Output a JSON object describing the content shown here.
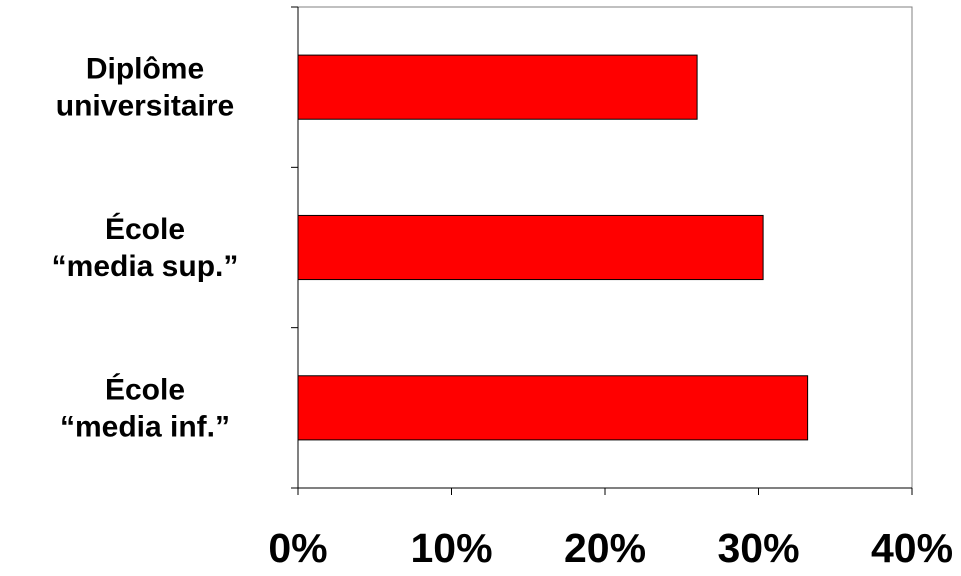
{
  "chart_data": {
    "type": "bar",
    "orientation": "horizontal",
    "title": "",
    "xlabel": "",
    "ylabel": "",
    "categories": [
      [
        "Diplôme",
        "universitaire"
      ],
      [
        "École",
        "“media sup.”"
      ],
      [
        "École",
        "“media inf.”"
      ]
    ],
    "values": [
      26,
      30.3,
      33.2
    ],
    "xlim": [
      0,
      40
    ],
    "x_ticks": [
      "0%",
      "10%",
      "20%",
      "30%",
      "40%"
    ],
    "grid": false,
    "legend": "none",
    "bar_color": "#FF0000",
    "bar_edge_color": "#000000"
  }
}
